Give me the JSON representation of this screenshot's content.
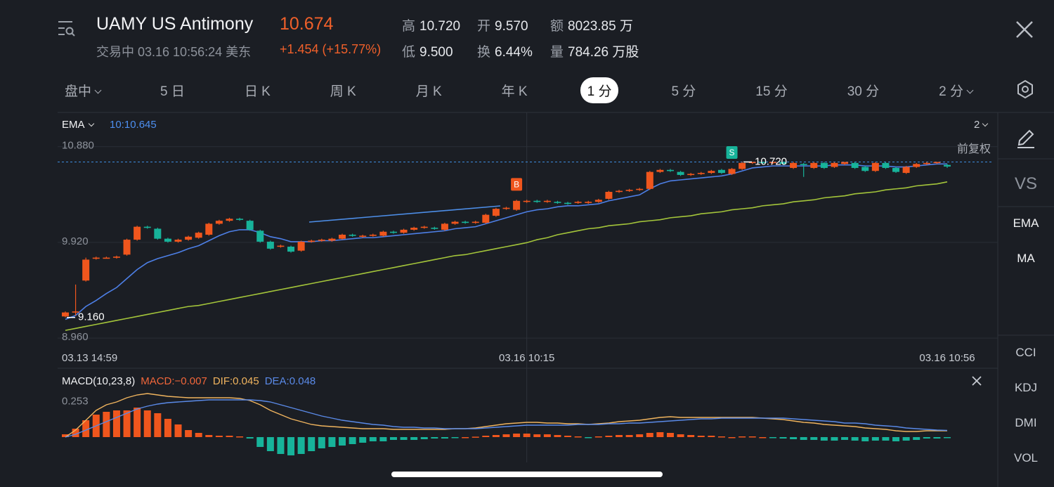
{
  "header": {
    "title": "UAMY US Antimony",
    "price": "10.674",
    "status": "交易中 03.16 10:56:24 美东",
    "change": "+1.454 (+15.77%)"
  },
  "stats": [
    {
      "label": "高",
      "value": "10.720"
    },
    {
      "label": "开",
      "value": "9.570"
    },
    {
      "label": "额",
      "value": "8023.85 万"
    },
    {
      "label": "低",
      "value": "9.500"
    },
    {
      "label": "换",
      "value": "6.44%"
    },
    {
      "label": "量",
      "value": "784.26 万股"
    }
  ],
  "tabs": [
    {
      "label": "盘中",
      "menu": true
    },
    {
      "label": "5 日"
    },
    {
      "label": "日 K"
    },
    {
      "label": "周 K"
    },
    {
      "label": "月 K"
    },
    {
      "label": "年 K"
    },
    {
      "label": "1 分",
      "active": true
    },
    {
      "label": "5 分"
    },
    {
      "label": "15 分"
    },
    {
      "label": "30 分"
    },
    {
      "label": "2 分",
      "menu": true
    }
  ],
  "side_tools": [
    "VS",
    "EMA",
    "MA"
  ],
  "side_indicators": [
    "CCI",
    "KDJ",
    "DMI",
    "VOL"
  ],
  "chart_data": [
    {
      "type": "candlestick",
      "indicator": "EMA",
      "indicator_value": "10:10.645",
      "period": "2",
      "adjust": "前复权",
      "categories": [
        "03.13 14:59",
        null,
        null,
        null,
        null,
        null,
        null,
        null,
        null,
        null,
        null,
        null,
        null,
        null,
        null,
        null,
        null,
        null,
        null,
        null,
        null,
        null,
        null,
        null,
        null,
        null,
        null,
        null,
        null,
        null,
        null,
        null,
        null,
        null,
        null,
        null,
        null,
        null,
        null,
        null,
        null,
        null,
        null,
        null,
        null,
        "03.16 10:15",
        null,
        null,
        null,
        null,
        null,
        null,
        null,
        null,
        null,
        null,
        null,
        null,
        null,
        null,
        null,
        null,
        null,
        null,
        null,
        null,
        null,
        null,
        null,
        null,
        null,
        null,
        null,
        null,
        null,
        null,
        null,
        null,
        null,
        null,
        null,
        null,
        null,
        null,
        null,
        null,
        "03.16 10:56"
      ],
      "open": [
        9.17,
        9.21,
        9.53,
        9.75,
        9.76,
        9.76,
        9.79,
        9.94,
        10.07,
        10.05,
        9.95,
        9.92,
        9.94,
        9.96,
        9.99,
        10.1,
        10.13,
        10.15,
        10.13,
        10.03,
        9.92,
        9.87,
        9.87,
        9.83,
        9.92,
        9.93,
        9.93,
        9.95,
        9.99,
        9.97,
        9.98,
        9.98,
        10.02,
        10.01,
        10.04,
        10.06,
        10.06,
        10.04,
        10.1,
        10.12,
        10.11,
        10.11,
        10.18,
        10.25,
        10.24,
        10.32,
        10.33,
        10.32,
        10.32,
        10.31,
        10.31,
        10.31,
        10.32,
        10.35,
        10.42,
        10.43,
        10.44,
        10.45,
        10.62,
        10.64,
        10.62,
        10.59,
        10.6,
        10.61,
        10.64,
        10.6,
        10.65,
        10.71,
        10.72,
        10.71,
        10.72,
        10.66,
        10.7,
        10.66,
        10.71,
        10.67,
        10.7,
        10.71,
        10.67,
        10.63,
        10.71,
        10.66,
        10.61,
        10.67,
        10.7,
        10.71,
        10.69
      ],
      "close": [
        9.21,
        9.22,
        9.74,
        9.76,
        9.76,
        9.77,
        9.94,
        10.07,
        10.06,
        9.95,
        9.92,
        9.94,
        9.97,
        10.01,
        10.1,
        10.13,
        10.15,
        10.14,
        10.04,
        9.92,
        9.85,
        9.88,
        9.82,
        9.92,
        9.93,
        9.94,
        9.95,
        9.99,
        9.98,
        9.98,
        9.99,
        10.02,
        10.01,
        10.04,
        10.06,
        10.07,
        10.05,
        10.1,
        10.12,
        10.11,
        10.12,
        10.19,
        10.25,
        10.26,
        10.33,
        10.33,
        10.32,
        10.33,
        10.31,
        10.3,
        10.32,
        10.32,
        10.34,
        10.42,
        10.43,
        10.44,
        10.45,
        10.62,
        10.64,
        10.63,
        10.59,
        10.6,
        10.61,
        10.63,
        10.61,
        10.65,
        10.71,
        10.72,
        10.71,
        10.72,
        10.7,
        10.71,
        10.69,
        10.71,
        10.66,
        10.71,
        10.72,
        10.66,
        10.63,
        10.71,
        10.66,
        10.62,
        10.67,
        10.7,
        10.71,
        10.72,
        10.674
      ],
      "high": [
        9.22,
        9.49,
        9.76,
        9.77,
        9.77,
        9.78,
        9.95,
        10.08,
        10.08,
        10.06,
        9.96,
        9.95,
        9.98,
        10.02,
        10.11,
        10.14,
        10.16,
        10.16,
        10.14,
        10.04,
        9.93,
        9.89,
        9.88,
        9.93,
        9.94,
        9.95,
        9.96,
        10.0,
        10.0,
        9.99,
        10.0,
        10.03,
        10.03,
        10.05,
        10.07,
        10.08,
        10.07,
        10.11,
        10.13,
        10.13,
        10.13,
        10.2,
        10.26,
        10.27,
        10.34,
        10.34,
        10.34,
        10.34,
        10.33,
        10.32,
        10.33,
        10.33,
        10.35,
        10.43,
        10.44,
        10.45,
        10.46,
        10.63,
        10.65,
        10.65,
        10.63,
        10.61,
        10.62,
        10.64,
        10.65,
        10.66,
        10.72,
        10.72,
        10.72,
        10.72,
        10.72,
        10.72,
        10.71,
        10.72,
        10.72,
        10.72,
        10.72,
        10.72,
        10.68,
        10.72,
        10.72,
        10.67,
        10.68,
        10.71,
        10.72,
        10.72,
        10.7
      ],
      "low": [
        9.16,
        9.18,
        9.52,
        9.74,
        9.75,
        9.75,
        9.78,
        9.93,
        10.05,
        9.94,
        9.91,
        9.91,
        9.93,
        9.95,
        9.98,
        10.09,
        10.12,
        10.13,
        10.03,
        9.91,
        9.84,
        9.86,
        9.81,
        9.82,
        9.91,
        9.92,
        9.92,
        9.94,
        9.97,
        9.96,
        9.97,
        9.97,
        10.0,
        10.0,
        10.03,
        10.05,
        10.04,
        10.03,
        10.09,
        10.1,
        10.1,
        10.1,
        10.17,
        10.24,
        10.23,
        10.31,
        10.31,
        10.31,
        10.3,
        10.29,
        10.3,
        10.3,
        10.31,
        10.34,
        10.41,
        10.42,
        10.43,
        10.44,
        10.61,
        10.62,
        10.58,
        10.58,
        10.59,
        10.6,
        10.6,
        10.59,
        10.64,
        10.7,
        10.7,
        10.7,
        10.69,
        10.65,
        10.57,
        10.65,
        10.65,
        10.66,
        10.69,
        10.65,
        10.62,
        10.62,
        10.65,
        10.61,
        10.6,
        10.66,
        10.69,
        10.7,
        10.66
      ],
      "lines": [
        {
          "color": "#4d7fe6",
          "values": [
            9.14,
            9.18,
            9.27,
            9.33,
            9.4,
            9.46,
            9.55,
            9.64,
            9.71,
            9.75,
            9.78,
            9.81,
            9.85,
            9.88,
            9.93,
            9.98,
            10.02,
            10.04,
            10.04,
            10.01,
            9.97,
            9.95,
            9.92,
            9.92,
            9.92,
            9.93,
            9.93,
            9.94,
            9.95,
            9.96,
            9.96,
            9.97,
            9.98,
            9.99,
            10.0,
            10.01,
            10.02,
            10.03,
            10.05,
            10.06,
            10.07,
            10.1,
            10.13,
            10.16,
            10.19,
            10.22,
            10.24,
            10.25,
            10.27,
            10.28,
            10.28,
            10.29,
            10.3,
            10.33,
            10.35,
            10.37,
            10.39,
            10.45,
            10.5,
            10.53,
            10.54,
            10.55,
            10.56,
            10.57,
            10.58,
            10.6,
            10.63,
            10.66,
            10.67,
            10.68,
            10.68,
            10.68,
            10.68,
            10.68,
            10.68,
            10.69,
            10.69,
            10.69,
            10.68,
            10.68,
            10.68,
            10.67,
            10.67,
            10.68,
            10.69,
            10.7,
            10.7
          ]
        },
        {
          "color": "#a3c43a",
          "values": [
            9.03,
            9.05,
            9.07,
            9.09,
            9.11,
            9.13,
            9.15,
            9.17,
            9.19,
            9.21,
            9.23,
            9.25,
            9.27,
            9.28,
            9.3,
            9.32,
            9.34,
            9.36,
            9.38,
            9.4,
            9.42,
            9.44,
            9.46,
            9.48,
            9.5,
            9.52,
            9.54,
            9.56,
            9.58,
            9.6,
            9.62,
            9.64,
            9.66,
            9.68,
            9.7,
            9.72,
            9.74,
            9.76,
            9.78,
            9.79,
            9.81,
            9.83,
            9.85,
            9.87,
            9.89,
            9.91,
            9.94,
            9.96,
            9.99,
            10.01,
            10.03,
            10.05,
            10.06,
            10.08,
            10.09,
            10.1,
            10.12,
            10.13,
            10.14,
            10.16,
            10.17,
            10.18,
            10.2,
            10.21,
            10.22,
            10.24,
            10.25,
            10.26,
            10.28,
            10.29,
            10.3,
            10.32,
            10.33,
            10.34,
            10.36,
            10.37,
            10.38,
            10.4,
            10.41,
            10.42,
            10.44,
            10.45,
            10.46,
            10.48,
            10.49,
            10.5,
            10.52
          ]
        }
      ],
      "high_marker": {
        "value": 10.72,
        "label": "10.720"
      },
      "low_marker": {
        "value": 9.16,
        "label": "9.160"
      },
      "trade_markers": [
        {
          "index": 44,
          "label": "B",
          "color": "#f0561d"
        },
        {
          "index": 65,
          "label": "S",
          "color": "#17b39a"
        }
      ],
      "ylim": [
        8.89,
        10.97
      ],
      "yticks": [
        {
          "value": 8.96,
          "label": "8.960"
        },
        {
          "value": 9.92,
          "label": "9.920"
        },
        {
          "value": 10.88,
          "label": "10.880"
        }
      ],
      "up_color": "#f0561d",
      "down_color": "#17b39a",
      "grid": true
    },
    {
      "type": "macd",
      "title": "MACD(10,23,8)",
      "legend": [
        {
          "text": "MACD:−0.007",
          "color": "#f0663a"
        },
        {
          "text": "DIF:0.045",
          "color": "#f0b45e"
        },
        {
          "text": "DEA:0.048",
          "color": "#5a8ae8"
        }
      ],
      "histogram": [
        0.02,
        0.06,
        0.12,
        0.16,
        0.18,
        0.19,
        0.19,
        0.21,
        0.19,
        0.17,
        0.13,
        0.09,
        0.05,
        0.03,
        0.015,
        0.01,
        0.01,
        0.005,
        -0.01,
        -0.07,
        -0.1,
        -0.12,
        -0.13,
        -0.12,
        -0.1,
        -0.08,
        -0.07,
        -0.06,
        -0.05,
        -0.04,
        -0.03,
        -0.03,
        -0.02,
        -0.02,
        -0.02,
        -0.015,
        -0.01,
        -0.01,
        -0.005,
        0,
        0.003,
        0.01,
        0.015,
        0.02,
        0.025,
        0.025,
        0.02,
        0.02,
        0.015,
        0.01,
        0.005,
        -0.005,
        0.005,
        0.01,
        0.015,
        0.015,
        0.02,
        0.03,
        0.035,
        0.03,
        0.02,
        0.015,
        0.01,
        0.01,
        0.005,
        0,
        0.005,
        0.005,
        0,
        -0.005,
        -0.01,
        -0.015,
        -0.02,
        -0.02,
        -0.025,
        -0.025,
        -0.02,
        -0.025,
        -0.03,
        -0.025,
        -0.025,
        -0.03,
        -0.025,
        -0.02,
        -0.01,
        -0.01,
        -0.007
      ],
      "series": [
        {
          "color": "#f0b45e",
          "values": [
            0,
            0.05,
            0.12,
            0.19,
            0.23,
            0.25,
            0.28,
            0.3,
            0.31,
            0.3,
            0.29,
            0.285,
            0.28,
            0.28,
            0.28,
            0.28,
            0.28,
            0.275,
            0.26,
            0.23,
            0.19,
            0.16,
            0.13,
            0.11,
            0.09,
            0.08,
            0.075,
            0.07,
            0.065,
            0.06,
            0.06,
            0.06,
            0.055,
            0.055,
            0.055,
            0.055,
            0.055,
            0.055,
            0.06,
            0.06,
            0.065,
            0.075,
            0.085,
            0.095,
            0.1,
            0.105,
            0.105,
            0.1,
            0.1,
            0.095,
            0.095,
            0.09,
            0.095,
            0.1,
            0.11,
            0.115,
            0.12,
            0.13,
            0.14,
            0.145,
            0.14,
            0.14,
            0.14,
            0.14,
            0.14,
            0.14,
            0.14,
            0.14,
            0.135,
            0.13,
            0.125,
            0.115,
            0.105,
            0.1,
            0.09,
            0.085,
            0.08,
            0.075,
            0.065,
            0.06,
            0.055,
            0.045,
            0.04,
            0.04,
            0.045,
            0.045,
            0.045
          ]
        },
        {
          "color": "#5a8ae8",
          "values": [
            0,
            0.02,
            0.05,
            0.08,
            0.11,
            0.14,
            0.17,
            0.2,
            0.22,
            0.235,
            0.245,
            0.25,
            0.255,
            0.26,
            0.265,
            0.265,
            0.265,
            0.265,
            0.265,
            0.26,
            0.25,
            0.23,
            0.21,
            0.19,
            0.17,
            0.15,
            0.135,
            0.12,
            0.11,
            0.1,
            0.09,
            0.085,
            0.075,
            0.07,
            0.07,
            0.065,
            0.065,
            0.06,
            0.06,
            0.06,
            0.06,
            0.065,
            0.07,
            0.075,
            0.08,
            0.085,
            0.085,
            0.085,
            0.085,
            0.085,
            0.09,
            0.09,
            0.09,
            0.095,
            0.095,
            0.1,
            0.1,
            0.105,
            0.11,
            0.115,
            0.12,
            0.125,
            0.13,
            0.13,
            0.135,
            0.135,
            0.135,
            0.135,
            0.135,
            0.135,
            0.135,
            0.13,
            0.125,
            0.12,
            0.115,
            0.11,
            0.1,
            0.1,
            0.095,
            0.085,
            0.08,
            0.075,
            0.065,
            0.06,
            0.055,
            0.05,
            0.048
          ]
        }
      ],
      "ylim": [
        -0.18,
        0.31
      ],
      "yticks": [
        0.253
      ],
      "up_color": "#f0561d",
      "down_color": "#17b39a"
    }
  ]
}
